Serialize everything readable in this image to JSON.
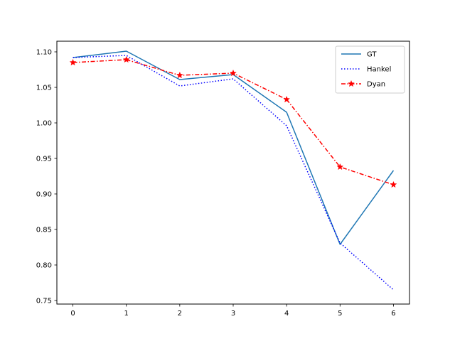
{
  "chart_data": {
    "type": "line",
    "x": [
      0,
      1,
      2,
      3,
      4,
      5,
      6
    ],
    "xlim": [
      -0.3,
      6.3
    ],
    "ylim": [
      0.745,
      1.115
    ],
    "xticks": [
      0,
      1,
      2,
      3,
      4,
      5,
      6
    ],
    "xtick_labels": [
      "0",
      "1",
      "2",
      "3",
      "4",
      "5",
      "6"
    ],
    "yticks": [
      0.75,
      0.8,
      0.85,
      0.9,
      0.95,
      1.0,
      1.05,
      1.1
    ],
    "ytick_labels": [
      "0.75",
      "0.80",
      "0.85",
      "0.90",
      "0.95",
      "1.00",
      "1.05",
      "1.10"
    ],
    "grid": false,
    "legend_position": "top-right",
    "series": [
      {
        "name": "GT",
        "color": "#1f77b4",
        "style": "solid",
        "marker": "none",
        "values": [
          1.092,
          1.101,
          1.061,
          1.068,
          1.015,
          0.829,
          0.933
        ]
      },
      {
        "name": "Hankel",
        "color": "#0000ff",
        "style": "dotted",
        "marker": "none",
        "values": [
          1.092,
          1.095,
          1.052,
          1.062,
          0.996,
          0.831,
          0.765
        ]
      },
      {
        "name": "Dyan",
        "color": "#ff0000",
        "style": "dashdot",
        "marker": "star",
        "values": [
          1.085,
          1.089,
          1.067,
          1.07,
          1.033,
          0.938,
          0.913
        ]
      }
    ]
  }
}
